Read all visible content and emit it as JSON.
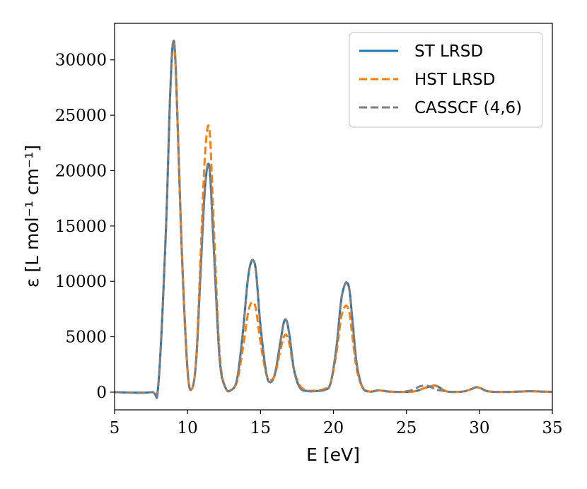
{
  "chart_data": {
    "type": "line",
    "xlabel": "E [eV]",
    "ylabel": "ε [L mol⁻¹ cm⁻¹]",
    "xlim": [
      5,
      35
    ],
    "ylim": [
      -1600,
      33300
    ],
    "xticks": [
      5,
      10,
      15,
      20,
      25,
      30,
      35
    ],
    "yticks": [
      0,
      5000,
      10000,
      15000,
      20000,
      25000,
      30000
    ],
    "grid": false,
    "legend_position": "top-right",
    "x": [
      5,
      7.5,
      8.0,
      8.5,
      8.8,
      9.0,
      9.2,
      9.6,
      10.0,
      10.3,
      10.6,
      10.9,
      11.2,
      11.5,
      11.8,
      12.2,
      12.6,
      13.0,
      13.4,
      13.8,
      14.1,
      14.3,
      14.5,
      14.7,
      15.0,
      15.4,
      15.7,
      16.0,
      16.3,
      16.6,
      16.8,
      17.0,
      17.3,
      17.7,
      18.2,
      18.8,
      19.4,
      19.8,
      20.2,
      20.5,
      20.7,
      20.9,
      21.1,
      21.3,
      21.6,
      22.0,
      22.5,
      23.0,
      23.4,
      23.8,
      24.5,
      25.3,
      25.8,
      26.0,
      26.3,
      26.6,
      26.9,
      27.1,
      27.4,
      27.8,
      28.4,
      29.0,
      29.5,
      29.8,
      30.1,
      30.5,
      31.0,
      32.0,
      33.5,
      34.2,
      35
    ],
    "series": [
      {
        "name": "ST LRSD",
        "color": "#1f77b4",
        "style": "solid",
        "values": [
          0,
          0,
          700,
          14000,
          26500,
          31500,
          29000,
          13000,
          2000,
          300,
          3000,
          11000,
          18500,
          20300,
          13000,
          3000,
          400,
          200,
          1200,
          5500,
          9800,
          11500,
          11900,
          10800,
          6000,
          1700,
          900,
          1700,
          4000,
          6300,
          6400,
          5000,
          2000,
          400,
          100,
          100,
          200,
          800,
          4000,
          8000,
          9400,
          9900,
          9200,
          6500,
          2500,
          400,
          50,
          150,
          120,
          50,
          20,
          30,
          150,
          250,
          400,
          500,
          600,
          550,
          300,
          50,
          20,
          80,
          300,
          450,
          350,
          100,
          30,
          20,
          80,
          50,
          30
        ]
      },
      {
        "name": "HST LRSD",
        "color": "#ff7f0e",
        "style": "dashed",
        "values": [
          0,
          0,
          700,
          14000,
          26500,
          31200,
          28800,
          13000,
          2000,
          300,
          3200,
          12500,
          21500,
          23700,
          15000,
          3500,
          400,
          200,
          1000,
          4000,
          6800,
          7900,
          8100,
          7400,
          4500,
          1600,
          1100,
          1600,
          3400,
          5000,
          5100,
          4200,
          2000,
          600,
          150,
          150,
          300,
          800,
          3500,
          6500,
          7500,
          7800,
          7100,
          5000,
          2000,
          400,
          50,
          150,
          120,
          50,
          20,
          30,
          150,
          250,
          400,
          480,
          580,
          520,
          300,
          50,
          20,
          80,
          300,
          450,
          350,
          100,
          30,
          20,
          80,
          50,
          30
        ]
      },
      {
        "name": "CASSCF (4,6)",
        "color": "#7f7f7f",
        "style": "dashed",
        "values": [
          0,
          0,
          700,
          14000,
          26500,
          31500,
          29000,
          13000,
          2000,
          300,
          3000,
          11000,
          18500,
          20300,
          13000,
          3000,
          400,
          200,
          1200,
          5500,
          9800,
          11500,
          11900,
          10800,
          6000,
          1700,
          900,
          1700,
          4000,
          6300,
          6400,
          5000,
          2000,
          400,
          100,
          100,
          200,
          800,
          4000,
          8000,
          9400,
          9900,
          9200,
          6500,
          2500,
          400,
          50,
          150,
          120,
          50,
          20,
          150,
          450,
          550,
          600,
          500,
          300,
          200,
          150,
          50,
          20,
          80,
          300,
          450,
          350,
          100,
          30,
          20,
          80,
          50,
          30
        ]
      }
    ]
  }
}
